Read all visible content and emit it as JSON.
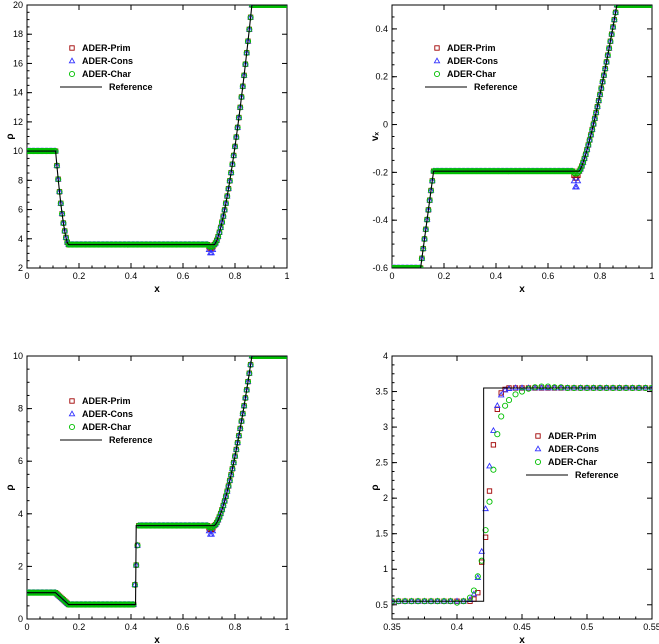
{
  "colors": {
    "prim": "#a00000",
    "cons": "#3030ff",
    "char": "#00c000",
    "ref": "#000000"
  },
  "chart_data": [
    {
      "type": "scatter",
      "xlabel": "x",
      "ylabel": "ρ",
      "xlim": [
        0,
        1
      ],
      "ylim": [
        2,
        20
      ],
      "xticks": [
        "0",
        "0.2",
        "0.4",
        "0.6",
        "0.8",
        "1"
      ],
      "yticks": [
        "2",
        "4",
        "6",
        "8",
        "10",
        "12",
        "14",
        "16",
        "18",
        "20"
      ],
      "legend": [
        "ADER-Prim",
        "ADER-Cons",
        "ADER-Char",
        "Reference"
      ],
      "legend_position": "upper-left",
      "reference": {
        "x": [
          0,
          0.11,
          0.16,
          0.72,
          0.86,
          0.87,
          1
        ],
        "y": [
          10,
          10,
          3.6,
          3.6,
          20,
          20,
          20
        ]
      },
      "series": [
        {
          "name": "ADER-Prim",
          "marker": "square"
        },
        {
          "name": "ADER-Cons",
          "marker": "triangle"
        },
        {
          "name": "ADER-Char",
          "marker": "circle"
        }
      ]
    },
    {
      "type": "scatter",
      "xlabel": "x",
      "ylabel": "vₓ",
      "xlim": [
        0,
        1
      ],
      "ylim": [
        -0.6,
        0.5
      ],
      "xticks": [
        "0",
        "0.2",
        "0.4",
        "0.6",
        "0.8",
        "1"
      ],
      "yticks": [
        "-0.6",
        "-0.4",
        "-0.2",
        "0",
        "0.2",
        "0.4"
      ],
      "legend": [
        "ADER-Prim",
        "ADER-Cons",
        "ADER-Char",
        "Reference"
      ],
      "legend_position": "upper-left",
      "reference": {
        "x": [
          0,
          0.11,
          0.16,
          0.72,
          0.86,
          0.87,
          1
        ],
        "y": [
          -0.6,
          -0.6,
          -0.195,
          -0.195,
          0.5,
          0.5,
          0.5
        ]
      },
      "series": [
        {
          "name": "ADER-Prim",
          "marker": "square"
        },
        {
          "name": "ADER-Cons",
          "marker": "triangle"
        },
        {
          "name": "ADER-Char",
          "marker": "circle"
        }
      ]
    },
    {
      "type": "scatter",
      "xlabel": "x",
      "ylabel": "ρ",
      "xlim": [
        0,
        1
      ],
      "ylim": [
        0,
        10
      ],
      "xticks": [
        "0",
        "0.2",
        "0.4",
        "0.6",
        "0.8",
        "1"
      ],
      "yticks": [
        "0",
        "2",
        "4",
        "6",
        "8",
        "10"
      ],
      "legend": [
        "ADER-Prim",
        "ADER-Cons",
        "ADER-Char",
        "Reference"
      ],
      "legend_position": "upper-left",
      "reference": {
        "x": [
          0,
          0.11,
          0.16,
          0.42,
          0.42,
          0.72,
          0.86,
          0.87,
          1
        ],
        "y": [
          1,
          1,
          0.55,
          0.55,
          3.55,
          3.55,
          10,
          10,
          10
        ]
      },
      "series": [
        {
          "name": "ADER-Prim",
          "marker": "square"
        },
        {
          "name": "ADER-Cons",
          "marker": "triangle"
        },
        {
          "name": "ADER-Char",
          "marker": "circle"
        }
      ]
    },
    {
      "type": "scatter",
      "xlabel": "x",
      "ylabel": "ρ",
      "xlim": [
        0.35,
        0.55
      ],
      "ylim": [
        0.3,
        4
      ],
      "xticks": [
        "0.35",
        "0.4",
        "0.45",
        "0.5",
        "0.55"
      ],
      "yticks": [
        "0.5",
        "1",
        "1.5",
        "2",
        "2.5",
        "3",
        "3.5",
        "4"
      ],
      "legend": [
        "ADER-Prim",
        "ADER-Cons",
        "ADER-Char",
        "Reference"
      ],
      "legend_position": "center-right",
      "reference": {
        "x": [
          0.35,
          0.4205,
          0.4205,
          0.55
        ],
        "y": [
          0.55,
          0.55,
          3.55,
          3.55
        ]
      },
      "series": [
        {
          "name": "ADER-Prim",
          "marker": "square",
          "x": [
            0.35,
            0.355,
            0.36,
            0.365,
            0.37,
            0.375,
            0.38,
            0.385,
            0.39,
            0.395,
            0.4,
            0.405,
            0.41,
            0.413,
            0.416,
            0.419,
            0.422,
            0.425,
            0.428,
            0.431,
            0.434,
            0.437,
            0.44,
            0.445,
            0.45,
            0.455,
            0.46,
            0.465,
            0.47,
            0.475,
            0.48,
            0.485,
            0.49,
            0.495,
            0.5,
            0.505,
            0.51,
            0.515,
            0.52,
            0.525,
            0.53,
            0.535,
            0.54,
            0.545,
            0.55
          ],
          "y": [
            0.55,
            0.55,
            0.55,
            0.55,
            0.55,
            0.55,
            0.55,
            0.55,
            0.55,
            0.55,
            0.55,
            0.55,
            0.55,
            0.58,
            0.67,
            1.1,
            1.45,
            2.1,
            2.75,
            3.25,
            3.48,
            3.53,
            3.55,
            3.55,
            3.55,
            3.55,
            3.55,
            3.55,
            3.55,
            3.55,
            3.55,
            3.55,
            3.55,
            3.55,
            3.55,
            3.55,
            3.55,
            3.55,
            3.55,
            3.55,
            3.55,
            3.55,
            3.55,
            3.55,
            3.55
          ]
        },
        {
          "name": "ADER-Cons",
          "marker": "triangle",
          "x": [
            0.35,
            0.355,
            0.36,
            0.365,
            0.37,
            0.375,
            0.38,
            0.385,
            0.39,
            0.395,
            0.4,
            0.405,
            0.41,
            0.413,
            0.416,
            0.419,
            0.422,
            0.425,
            0.428,
            0.431,
            0.434,
            0.437,
            0.44,
            0.445,
            0.45,
            0.455,
            0.46,
            0.465,
            0.47,
            0.475,
            0.48,
            0.485,
            0.49,
            0.495,
            0.5,
            0.505,
            0.51,
            0.515,
            0.52,
            0.525,
            0.53,
            0.535,
            0.54,
            0.545,
            0.55
          ],
          "y": [
            0.55,
            0.55,
            0.55,
            0.55,
            0.55,
            0.55,
            0.55,
            0.55,
            0.55,
            0.55,
            0.55,
            0.55,
            0.57,
            0.65,
            0.88,
            1.25,
            1.85,
            2.45,
            2.95,
            3.3,
            3.45,
            3.52,
            3.54,
            3.55,
            3.55,
            3.55,
            3.55,
            3.55,
            3.55,
            3.55,
            3.55,
            3.55,
            3.55,
            3.55,
            3.55,
            3.55,
            3.55,
            3.55,
            3.55,
            3.55,
            3.55,
            3.55,
            3.55,
            3.55,
            3.55
          ]
        },
        {
          "name": "ADER-Char",
          "marker": "circle",
          "x": [
            0.35,
            0.355,
            0.36,
            0.365,
            0.37,
            0.375,
            0.38,
            0.385,
            0.39,
            0.395,
            0.4,
            0.405,
            0.41,
            0.413,
            0.416,
            0.419,
            0.422,
            0.425,
            0.428,
            0.431,
            0.434,
            0.437,
            0.44,
            0.445,
            0.45,
            0.455,
            0.46,
            0.465,
            0.47,
            0.475,
            0.48,
            0.485,
            0.49,
            0.495,
            0.5,
            0.505,
            0.51,
            0.515,
            0.52,
            0.525,
            0.53,
            0.535,
            0.54,
            0.545,
            0.55
          ],
          "y": [
            0.55,
            0.55,
            0.55,
            0.55,
            0.55,
            0.55,
            0.55,
            0.55,
            0.55,
            0.55,
            0.53,
            0.55,
            0.6,
            0.7,
            0.9,
            1.12,
            1.55,
            1.95,
            2.4,
            2.9,
            3.15,
            3.3,
            3.38,
            3.46,
            3.5,
            3.54,
            3.56,
            3.57,
            3.57,
            3.56,
            3.56,
            3.55,
            3.55,
            3.55,
            3.55,
            3.55,
            3.55,
            3.55,
            3.55,
            3.55,
            3.55,
            3.55,
            3.55,
            3.55,
            3.55
          ]
        }
      ]
    }
  ]
}
